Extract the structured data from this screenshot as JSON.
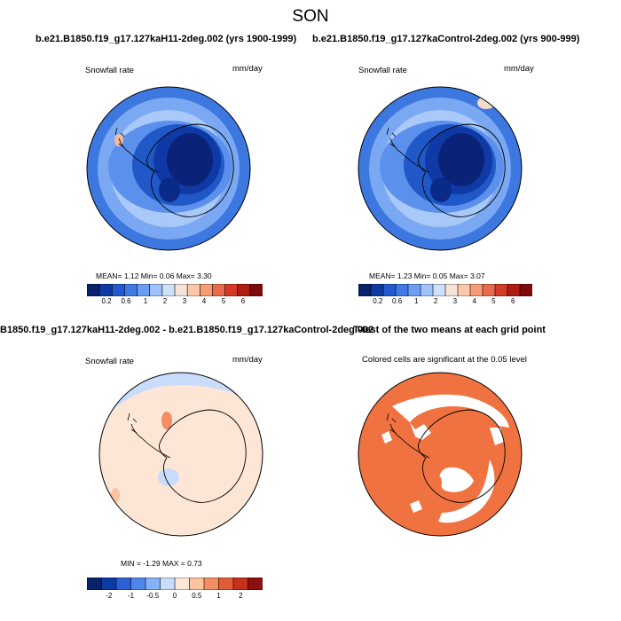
{
  "season": "SON",
  "panels": {
    "top_left": {
      "title": "b.e21.B1850.f19_g17.127kaH11-2deg.002 (yrs 1900-1999)",
      "variable": "Snowfall rate",
      "units": "mm/day",
      "stats": "MEAN=   1.12  Min=   0.06  Max=   3.30"
    },
    "top_right": {
      "title": "b.e21.B1850.f19_g17.127kaControl-2deg.002 (yrs 900-999)",
      "variable": "Snowfall rate",
      "units": "mm/day",
      "stats": "MEAN=   1.23  Min=   0.05  Max=   3.07"
    },
    "bottom_left": {
      "title": "B1850.f19_g17.127kaH11-2deg.002 - b.e21.B1850.f19_g17.127kaControl-2deg.002",
      "variable": "Snowfall rate",
      "units": "mm/day",
      "stats": "MIN =  -1.29 MAX =   0.73"
    },
    "bottom_right": {
      "title": "T-test of the two means at each grid point",
      "subtitle": "Colored cells are significant at the 0.05 level"
    }
  },
  "colorbars": {
    "abs": {
      "ticks": [
        "0.2",
        "0.6",
        "1",
        "2",
        "3",
        "4",
        "5",
        "6"
      ],
      "colors": [
        "#08216b",
        "#0d3aa3",
        "#2159d1",
        "#3f7ae6",
        "#6b9ef2",
        "#9fc3f9",
        "#cfe0fb",
        "#f6e4d6",
        "#fbc9a9",
        "#f59b76",
        "#ea6b4b",
        "#d43a25",
        "#b01c12",
        "#7e0a0a"
      ]
    },
    "diff": {
      "ticks": [
        "-2",
        "-1",
        "-0.5",
        "0",
        "0.5",
        "1",
        "2"
      ],
      "colors": [
        "#08216b",
        "#0d3aa3",
        "#2a5fd6",
        "#4f86ec",
        "#86b0f7",
        "#c9dcfb",
        "#fde7d6",
        "#fbc3a0",
        "#f48d62",
        "#e35a37",
        "#c7301c",
        "#8e0f0f"
      ]
    }
  },
  "signif_color": "#f07240"
}
